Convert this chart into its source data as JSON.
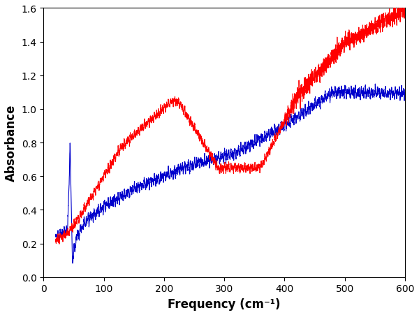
{
  "xlabel": "Frequency (cm⁻¹)",
  "ylabel": "Absorbance",
  "xlim": [
    0,
    600
  ],
  "ylim": [
    0.0,
    1.6
  ],
  "xticks": [
    0,
    100,
    200,
    300,
    400,
    500,
    600
  ],
  "yticks": [
    0.0,
    0.2,
    0.4,
    0.6,
    0.8,
    1.0,
    1.2,
    1.4,
    1.6
  ],
  "red_color": "#ff0000",
  "blue_color": "#0000cc",
  "linewidth": 0.8,
  "xlabel_fontsize": 12,
  "ylabel_fontsize": 12,
  "tick_fontsize": 10
}
